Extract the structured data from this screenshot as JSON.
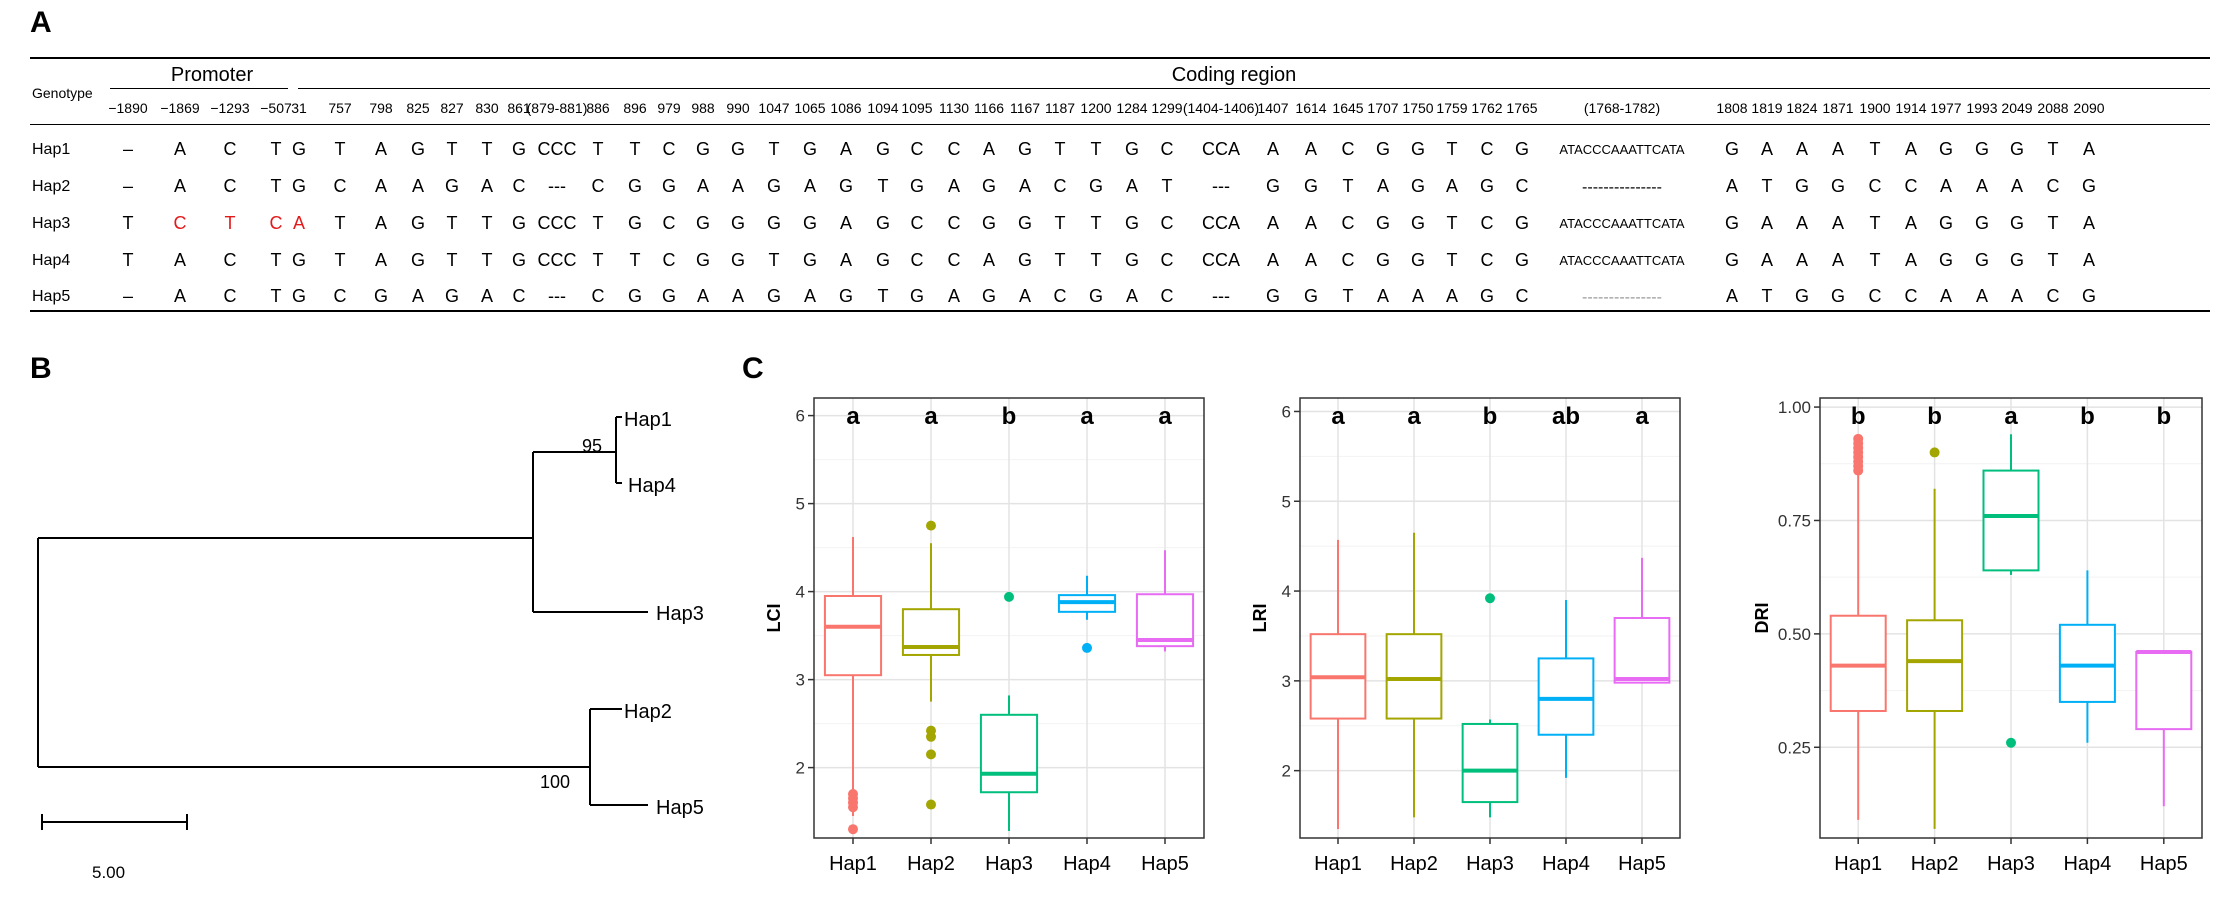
{
  "panels": {
    "a": "A",
    "b": "B",
    "c": "C"
  },
  "table": {
    "genotype_label": "Genotype",
    "promoter_label": "Promoter",
    "coding_label": "Coding region",
    "promoter_positions": [
      "−1890",
      "−1869",
      "−1293",
      "−507"
    ],
    "coding_positions": [
      "31",
      "757",
      "798",
      "825",
      "827",
      "830",
      "861",
      "(879-881)",
      "886",
      "896",
      "979",
      "988",
      "990",
      "1047",
      "1065",
      "1086",
      "1094",
      "1095",
      "1130",
      "1166",
      "1167",
      "1187",
      "1200",
      "1284",
      "1299",
      "(1404-1406)",
      "1407",
      "1614",
      "1645",
      "1707",
      "1750",
      "1759",
      "1762",
      "1765",
      "(1768-1782)",
      "1808",
      "1819",
      "1824",
      "1871",
      "1900",
      "1914",
      "1977",
      "1993",
      "2049",
      "2088",
      "2090"
    ],
    "rows": [
      {
        "name": "Hap1",
        "promoter": [
          "–",
          "A",
          "C",
          "T"
        ],
        "coding": [
          "G",
          "T",
          "A",
          "G",
          "T",
          "T",
          "G",
          "CCC",
          "T",
          "T",
          "C",
          "G",
          "G",
          "T",
          "G",
          "A",
          "G",
          "C",
          "C",
          "A",
          "G",
          "T",
          "T",
          "G",
          "C",
          "CCA",
          "A",
          "A",
          "C",
          "G",
          "G",
          "T",
          "C",
          "G",
          "ATACCCAAATTCATA",
          "G",
          "A",
          "A",
          "A",
          "T",
          "A",
          "G",
          "G",
          "G",
          "T",
          "A"
        ]
      },
      {
        "name": "Hap2",
        "promoter": [
          "–",
          "A",
          "C",
          "T"
        ],
        "coding": [
          "G",
          "C",
          "A",
          "A",
          "G",
          "A",
          "C",
          "---",
          "C",
          "G",
          "G",
          "A",
          "A",
          "G",
          "A",
          "G",
          "T",
          "G",
          "A",
          "G",
          "A",
          "C",
          "G",
          "A",
          "T",
          "---",
          "G",
          "G",
          "T",
          "A",
          "G",
          "A",
          "G",
          "C",
          "---------------",
          "A",
          "T",
          "G",
          "G",
          "C",
          "C",
          "A",
          "A",
          "A",
          "C",
          "G"
        ]
      },
      {
        "name": "Hap3",
        "promoter": [
          "T",
          "C",
          "T",
          "C"
        ],
        "coding": [
          "A",
          "T",
          "A",
          "G",
          "T",
          "T",
          "G",
          "CCC",
          "T",
          "G",
          "C",
          "G",
          "G",
          "G",
          "G",
          "A",
          "G",
          "C",
          "C",
          "G",
          "G",
          "T",
          "T",
          "G",
          "C",
          "CCA",
          "A",
          "A",
          "C",
          "G",
          "G",
          "T",
          "C",
          "G",
          "ATACCCAAATTCATA",
          "G",
          "A",
          "A",
          "A",
          "T",
          "A",
          "G",
          "G",
          "G",
          "T",
          "A"
        ]
      },
      {
        "name": "Hap4",
        "promoter": [
          "T",
          "A",
          "C",
          "T"
        ],
        "coding": [
          "G",
          "T",
          "A",
          "G",
          "T",
          "T",
          "G",
          "CCC",
          "T",
          "T",
          "C",
          "G",
          "G",
          "T",
          "G",
          "A",
          "G",
          "C",
          "C",
          "A",
          "G",
          "T",
          "T",
          "G",
          "C",
          "CCA",
          "A",
          "A",
          "C",
          "G",
          "G",
          "T",
          "C",
          "G",
          "ATACCCAAATTCATA",
          "G",
          "A",
          "A",
          "A",
          "T",
          "A",
          "G",
          "G",
          "G",
          "T",
          "A"
        ]
      },
      {
        "name": "Hap5",
        "promoter": [
          "–",
          "A",
          "C",
          "T"
        ],
        "coding": [
          "G",
          "C",
          "G",
          "A",
          "G",
          "A",
          "C",
          "---",
          "C",
          "G",
          "G",
          "A",
          "A",
          "G",
          "A",
          "G",
          "T",
          "G",
          "A",
          "G",
          "A",
          "C",
          "G",
          "A",
          "C",
          "---",
          "G",
          "G",
          "T",
          "A",
          "A",
          "A",
          "G",
          "C",
          "---------------",
          "A",
          "T",
          "G",
          "G",
          "C",
          "C",
          "A",
          "A",
          "A",
          "C",
          "G"
        ]
      }
    ],
    "highlight_color": "#e31a1c"
  },
  "tree": {
    "leaves": [
      "Hap1",
      "Hap4",
      "Hap3",
      "Hap2",
      "Hap5"
    ],
    "bootstrap": [
      "95",
      "100"
    ],
    "scale_label": "5.00"
  },
  "colors": {
    "Hap1": "#f8766d",
    "Hap2": "#a3a500",
    "Hap3": "#00bf7d",
    "Hap4": "#00b0f6",
    "Hap5": "#e76bf3"
  },
  "chart_data": [
    {
      "type": "box",
      "ylabel": "LCI",
      "categories": [
        "Hap1",
        "Hap2",
        "Hap3",
        "Hap4",
        "Hap5"
      ],
      "ylim": [
        1.2,
        6.2
      ],
      "yticks": [
        "2",
        "3",
        "4",
        "5",
        "6"
      ],
      "ytick_values": [
        2,
        3,
        4,
        5,
        6
      ],
      "letters": [
        "a",
        "a",
        "b",
        "a",
        "a"
      ],
      "boxes": [
        {
          "whislo": 1.45,
          "q1": 3.05,
          "med": 3.6,
          "q3": 3.95,
          "whishi": 4.62,
          "fliers": [
            1.3,
            1.55,
            1.6,
            1.65,
            1.7
          ]
        },
        {
          "whislo": 2.75,
          "q1": 3.28,
          "med": 3.37,
          "q3": 3.8,
          "whishi": 4.55,
          "fliers": [
            1.58,
            2.15,
            2.35,
            2.42,
            4.75
          ]
        },
        {
          "whislo": 1.28,
          "q1": 1.72,
          "med": 1.93,
          "q3": 2.6,
          "whishi": 2.82,
          "fliers": [
            3.94
          ]
        },
        {
          "whislo": 3.68,
          "q1": 3.77,
          "med": 3.88,
          "q3": 3.96,
          "whishi": 4.18,
          "fliers": [
            3.36
          ]
        },
        {
          "whislo": 3.32,
          "q1": 3.38,
          "med": 3.45,
          "q3": 3.97,
          "whishi": 4.47,
          "fliers": []
        }
      ]
    },
    {
      "type": "box",
      "ylabel": "LRI",
      "categories": [
        "Hap1",
        "Hap2",
        "Hap3",
        "Hap4",
        "Hap5"
      ],
      "ylim": [
        1.25,
        6.15
      ],
      "yticks": [
        "2",
        "3",
        "4",
        "5",
        "6"
      ],
      "ytick_values": [
        2,
        3,
        4,
        5,
        6
      ],
      "letters": [
        "a",
        "a",
        "b",
        "ab",
        "a"
      ],
      "boxes": [
        {
          "whislo": 1.35,
          "q1": 2.58,
          "med": 3.04,
          "q3": 3.52,
          "whishi": 4.57,
          "fliers": []
        },
        {
          "whislo": 1.48,
          "q1": 2.58,
          "med": 3.02,
          "q3": 3.52,
          "whishi": 4.65,
          "fliers": []
        },
        {
          "whislo": 1.48,
          "q1": 1.65,
          "med": 2.0,
          "q3": 2.52,
          "whishi": 2.57,
          "fliers": [
            3.92
          ]
        },
        {
          "whislo": 1.92,
          "q1": 2.4,
          "med": 2.8,
          "q3": 3.25,
          "whishi": 3.9,
          "fliers": []
        },
        {
          "whislo": 2.97,
          "q1": 2.98,
          "med": 3.02,
          "q3": 3.7,
          "whishi": 4.37,
          "fliers": []
        }
      ]
    },
    {
      "type": "box",
      "ylabel": "DRI",
      "categories": [
        "Hap1",
        "Hap2",
        "Hap3",
        "Hap4",
        "Hap5"
      ],
      "ylim": [
        0.05,
        1.02
      ],
      "yticks": [
        "0.25",
        "0.50",
        "0.75",
        "1.00"
      ],
      "ytick_values": [
        0.25,
        0.5,
        0.75,
        1.0
      ],
      "letters": [
        "b",
        "b",
        "a",
        "b",
        "b"
      ],
      "boxes": [
        {
          "whislo": 0.09,
          "q1": 0.33,
          "med": 0.43,
          "q3": 0.54,
          "whishi": 0.85,
          "fliers": [
            0.86,
            0.87,
            0.88,
            0.89,
            0.9,
            0.91,
            0.92,
            0.93
          ]
        },
        {
          "whislo": 0.07,
          "q1": 0.33,
          "med": 0.44,
          "q3": 0.53,
          "whishi": 0.82,
          "fliers": [
            0.9
          ]
        },
        {
          "whislo": 0.63,
          "q1": 0.64,
          "med": 0.76,
          "q3": 0.86,
          "whishi": 0.94,
          "fliers": [
            0.26
          ]
        },
        {
          "whislo": 0.26,
          "q1": 0.35,
          "med": 0.43,
          "q3": 0.52,
          "whishi": 0.64,
          "fliers": []
        },
        {
          "whislo": 0.12,
          "q1": 0.29,
          "med": 0.46,
          "q3": 0.46,
          "whishi": 0.46,
          "fliers": []
        }
      ]
    }
  ]
}
